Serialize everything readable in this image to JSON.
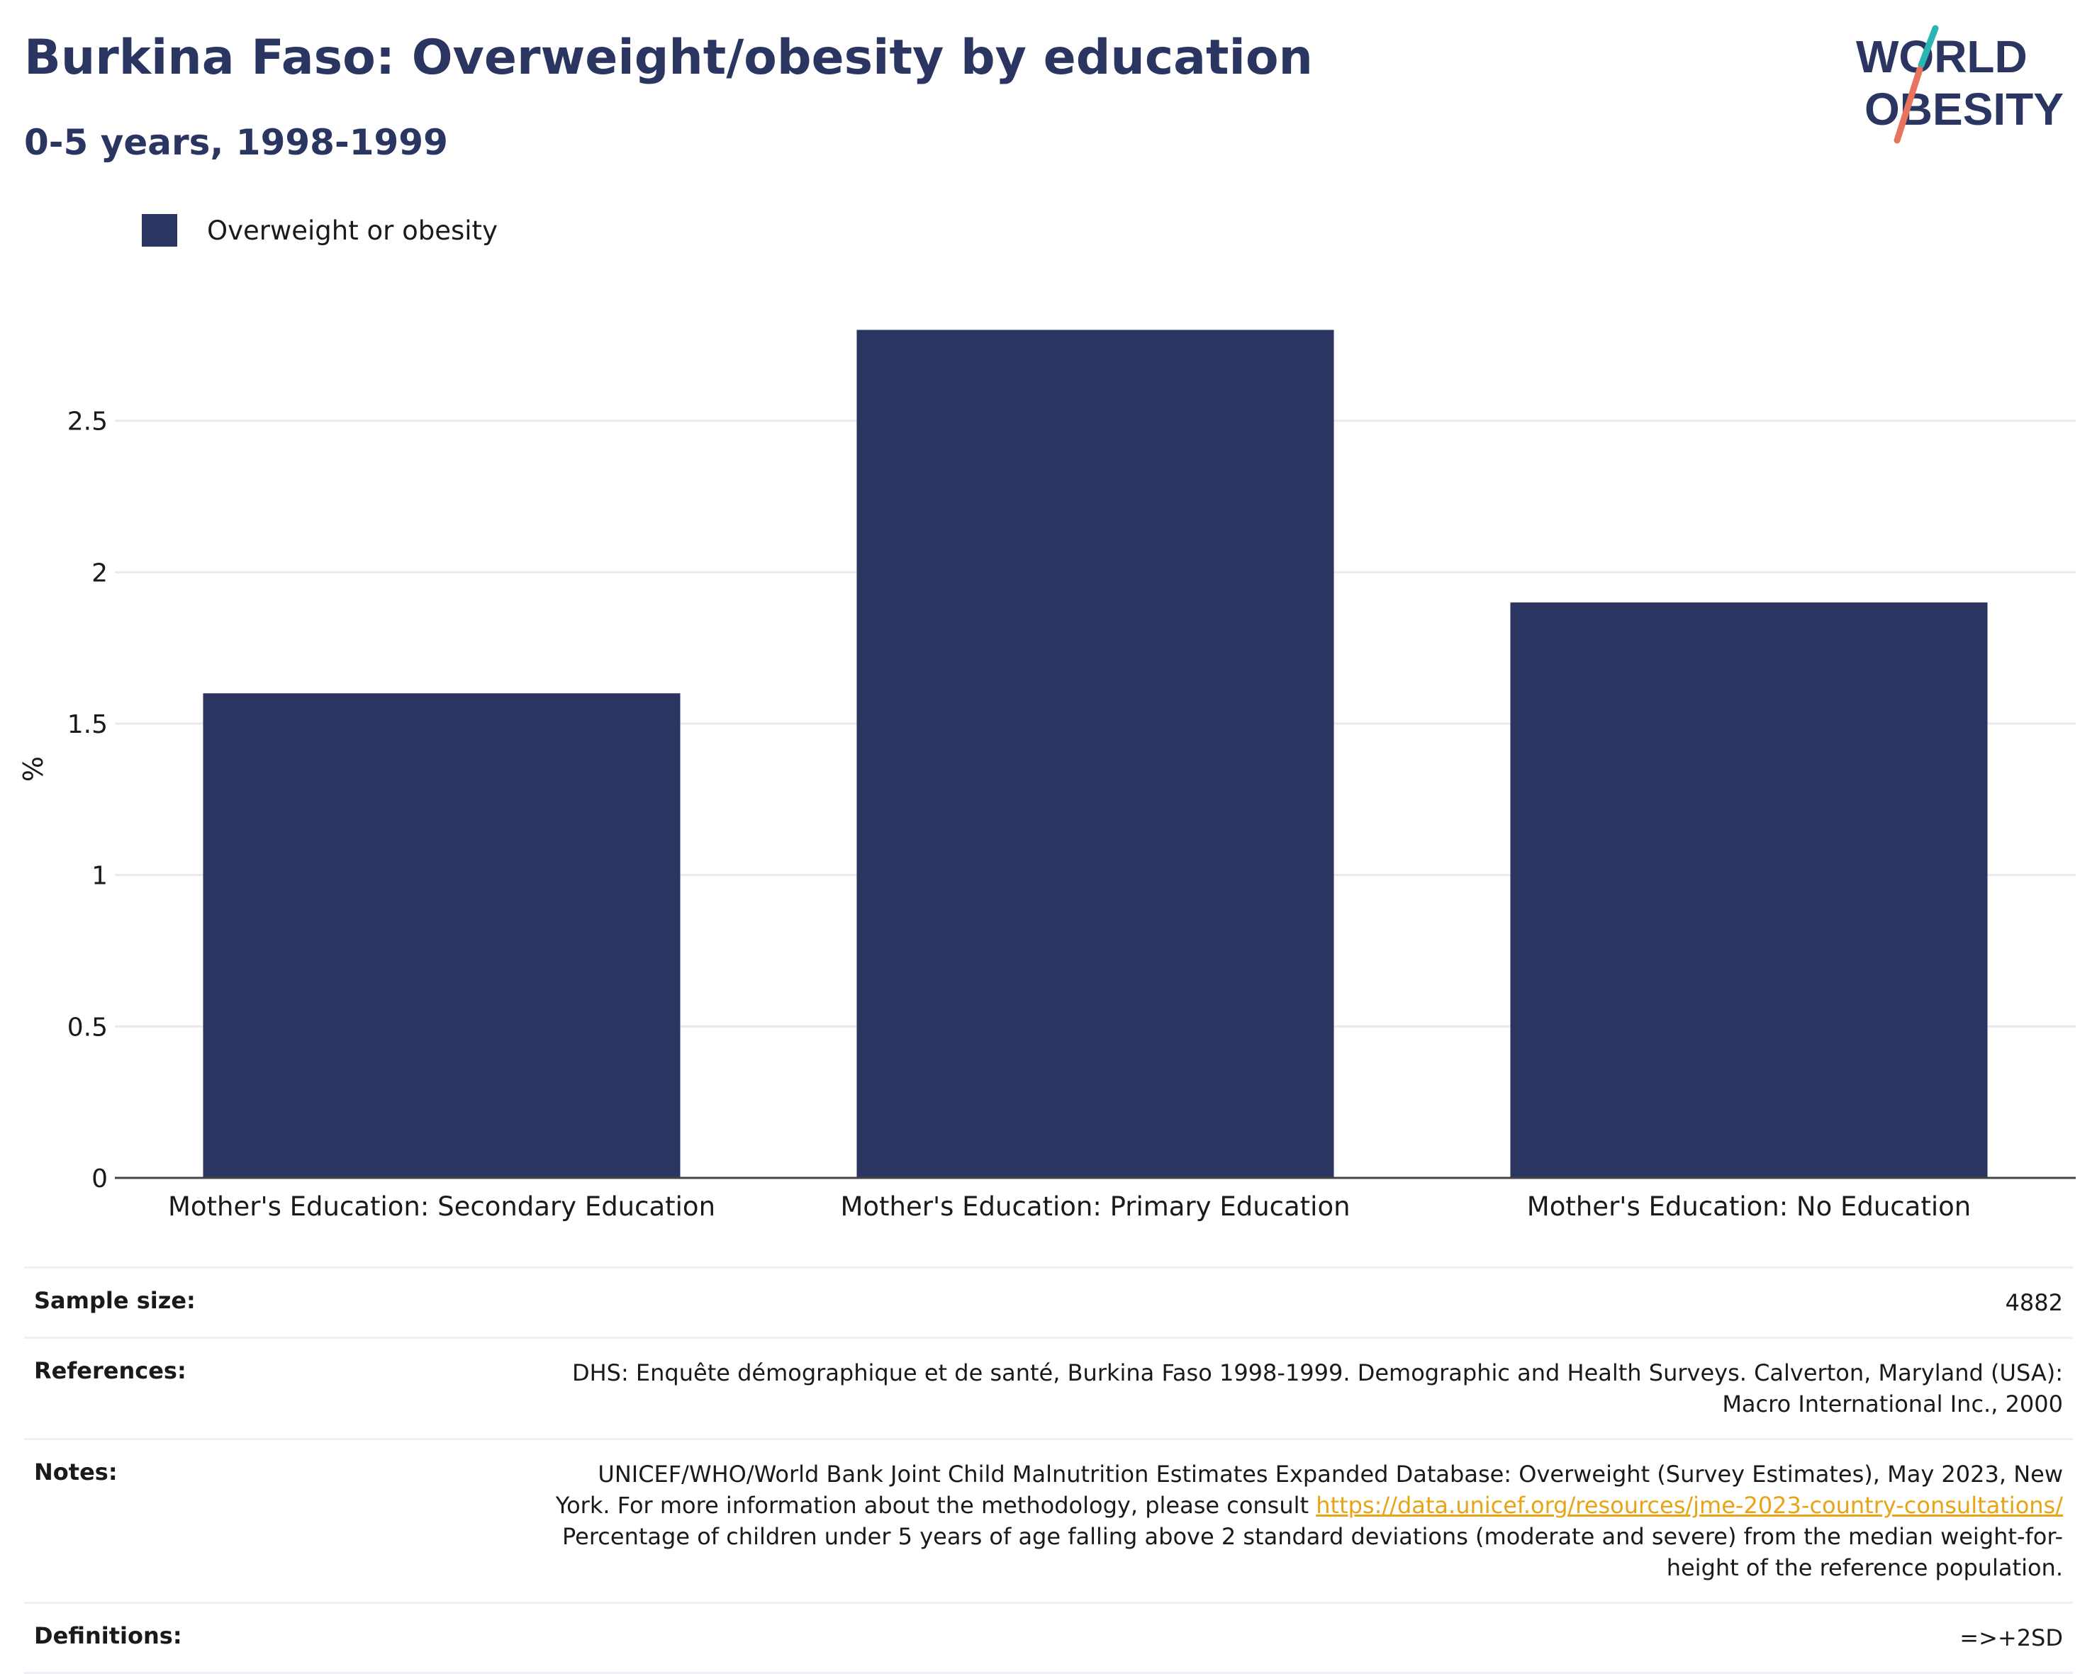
{
  "header": {
    "title": "Burkina Faso: Overweight/obesity by education",
    "subtitle": "0-5 years, 1998-1999"
  },
  "logo": {
    "line1": "WORLD",
    "line2": "OBESITY"
  },
  "legend": {
    "label": "Overweight or obesity"
  },
  "colors": {
    "bar": "#2a3561",
    "title": "#2a3561",
    "grid": "#e8eaf0",
    "link": "#e8a416",
    "logo_teal": "#2bb5b0",
    "logo_coral": "#e8735e"
  },
  "chart_data": {
    "type": "bar",
    "ylabel": "%",
    "xlabel": "",
    "categories": [
      "Mother's Education: Secondary Education",
      "Mother's Education: Primary Education",
      "Mother's Education: No Education"
    ],
    "series": [
      {
        "name": "Overweight or obesity",
        "values": [
          1.6,
          2.8,
          1.9
        ]
      }
    ],
    "ylim": [
      0,
      3
    ],
    "yticks": [
      0,
      0.5,
      1,
      1.5,
      2,
      2.5
    ],
    "ytick_labels": [
      "0",
      "0.5",
      "1",
      "1.5",
      "2",
      "2.5"
    ],
    "grid": true,
    "legend_position": "top-left"
  },
  "meta": {
    "sample_size_label": "Sample size:",
    "sample_size_value": "4882",
    "references_label": "References:",
    "references_line1": "DHS: Enquête démographique et de santé, Burkina Faso 1998-1999. Demographic and Health Surveys. Calverton, Maryland (USA):",
    "references_line2": "Macro International Inc., 2000",
    "notes_label": "Notes:",
    "notes_line1": "UNICEF/WHO/World Bank Joint Child Malnutrition Estimates Expanded Database: Overweight (Survey Estimates), May 2023, New",
    "notes_line2_prefix": "York. For more information about the methodology, please consult ",
    "notes_link": "https://data.unicef.org/resources/jme-2023-country-consultations/",
    "notes_line3": "Percentage of children under 5 years of age falling above 2 standard deviations (moderate and severe) from the median weight-for-",
    "notes_line4": "height of the reference population.",
    "definitions_label": "Definitions:",
    "definitions_value": "=>+2SD"
  }
}
